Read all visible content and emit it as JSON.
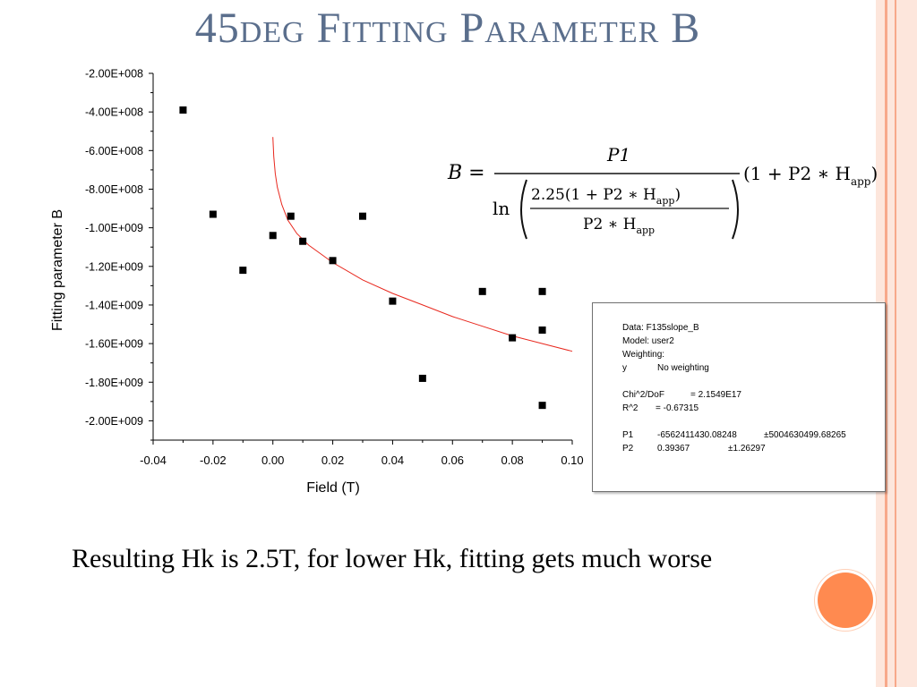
{
  "slide": {
    "title": "45deg Fitting Parameter B",
    "caption": "Resulting Hk is 2.5T, for lower Hk, fitting gets much worse"
  },
  "colors": {
    "title": "#5a6e8c",
    "stripe_light": "#fde6dc",
    "stripe_accent": "#f7a88a",
    "bullet": "#ff8a50",
    "fit_curve": "#e8281e",
    "points": "#000000"
  },
  "formula": {
    "lhs": "B =",
    "numerator": "P1",
    "ln": "ln",
    "inner_numerator": "2.25(1 + P2 ∗ H",
    "inner_numerator_close": ")",
    "inner_denominator": "P2 ∗ H",
    "subscript": "app",
    "factor": "(1 + P2 ∗ H",
    "factor_close": ")"
  },
  "info_box": {
    "lines": [
      [
        "Data: F135slope_B"
      ],
      [
        "Model: user2"
      ],
      [
        "Weighting:"
      ],
      [
        "y",
        "No weighting"
      ],
      [
        ""
      ],
      [
        "Chi^2/DoF",
        "= 2.1549E17"
      ],
      [
        "R^2",
        "=  -0.67315"
      ],
      [
        ""
      ],
      [
        "P1",
        "-6562411430.08248",
        "±5004630499.68265"
      ],
      [
        "P2",
        "0.39367",
        "±1.26297"
      ]
    ]
  },
  "chart_data": {
    "type": "scatter",
    "xlabel": "Field (T)",
    "ylabel": "Fitting parameter B",
    "xlim": [
      -0.04,
      0.1
    ],
    "ylim": [
      -2100000000.0,
      -200000000.0
    ],
    "x_ticks": [
      "-0.04",
      "-0.02",
      "0.00",
      "0.02",
      "0.04",
      "0.06",
      "0.08",
      "0.10"
    ],
    "x_tick_values": [
      -0.04,
      -0.02,
      0.0,
      0.02,
      0.04,
      0.06,
      0.08,
      0.1
    ],
    "y_ticks": [
      "-2.00E+008",
      "-4.00E+008",
      "-6.00E+008",
      "-8.00E+008",
      "-1.00E+009",
      "-1.20E+009",
      "-1.40E+009",
      "-1.60E+009",
      "-1.80E+009",
      "-2.00E+009"
    ],
    "y_tick_values": [
      -200000000.0,
      -400000000.0,
      -600000000.0,
      -800000000.0,
      -1000000000.0,
      -1200000000.0,
      -1400000000.0,
      -1600000000.0,
      -1800000000.0,
      -2000000000.0
    ],
    "grid": false,
    "series": [
      {
        "type": "scatter",
        "marker": "square",
        "x": [
          -0.03,
          -0.02,
          -0.01,
          0.0,
          0.006,
          0.01,
          0.02,
          0.03,
          0.04,
          0.05,
          0.07,
          0.08,
          0.09,
          0.09,
          0.09
        ],
        "y": [
          -390000000.0,
          -930000000.0,
          -1220000000.0,
          -1040000000.0,
          -940000000.0,
          -1070000000.0,
          -1170000000.0,
          -940000000.0,
          -1380000000.0,
          -1780000000.0,
          -1330000000.0,
          -1570000000.0,
          -1330000000.0,
          -1530000000.0,
          -1920000000.0
        ]
      },
      {
        "type": "line",
        "curve": "fit",
        "x": [
          0.0,
          0.0003,
          0.0008,
          0.0015,
          0.003,
          0.005,
          0.008,
          0.012,
          0.02,
          0.03,
          0.04,
          0.05,
          0.06,
          0.07,
          0.08,
          0.09,
          0.1
        ],
        "y": [
          -530000000.0,
          -630000000.0,
          -720000000.0,
          -790000000.0,
          -880000000.0,
          -960000000.0,
          -1030000000.0,
          -1090000000.0,
          -1180000000.0,
          -1270000000.0,
          -1340000000.0,
          -1400000000.0,
          -1460000000.0,
          -1510000000.0,
          -1560000000.0,
          -1600000000.0,
          -1640000000.0
        ]
      }
    ]
  }
}
